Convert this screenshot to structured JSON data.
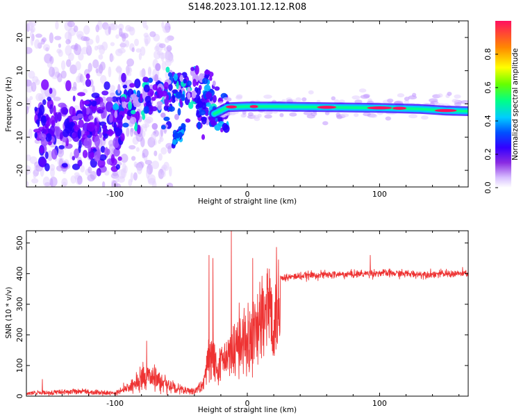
{
  "title": "S148.2023.101.12.12.R08",
  "chart_data": [
    {
      "type": "heatmap",
      "name": "spectrogram",
      "xlabel": "Height of straight line (km)",
      "ylabel": "Frequency (Hz)",
      "xlim": [
        -167,
        167
      ],
      "ylim": [
        -25,
        25
      ],
      "xticks": [
        -100,
        0,
        100
      ],
      "xtick_labels": [
        "-100",
        "0",
        "100"
      ],
      "yticks": [
        -20,
        -10,
        0,
        10,
        20
      ],
      "ytick_labels": [
        "-20",
        "-10",
        "0",
        "10",
        "20"
      ],
      "ridge": {
        "description_points_x": [
          -25,
          -20,
          -15,
          0,
          20,
          60,
          100,
          130,
          150,
          167
        ],
        "description_points_y": [
          -3,
          -2,
          -1,
          -0.8,
          -0.8,
          -1,
          -1.2,
          -1.5,
          -2,
          -2.2
        ]
      },
      "colorbar": {
        "label": "Normalized spectral amplitude",
        "range": [
          0,
          1
        ],
        "ticks": [
          0.0,
          0.2,
          0.4,
          0.6,
          0.8
        ],
        "tick_labels": [
          "0.0",
          "0.2",
          "0.4",
          "0.6",
          "0.8"
        ],
        "colors": [
          "#ffffff",
          "#c9a3ff",
          "#7a00ff",
          "#0000ff",
          "#00c8ff",
          "#00ff80",
          "#7fff00",
          "#ffff00",
          "#ff8000",
          "#ff1060"
        ]
      }
    },
    {
      "type": "line",
      "name": "snr",
      "xlabel": "Height of straight line (km)",
      "ylabel": "SNR (10 * v/v)",
      "xlim": [
        -167,
        167
      ],
      "ylim": [
        0,
        540
      ],
      "xticks": [
        -100,
        0,
        100
      ],
      "xtick_labels": [
        "-100",
        "0",
        "100"
      ],
      "yticks": [
        0,
        100,
        200,
        300,
        400,
        500
      ],
      "ytick_labels": [
        "0",
        "100",
        "200",
        "300",
        "400",
        "500"
      ],
      "color": "#ee3333",
      "envelope": {
        "x": [
          -167,
          -130,
          -100,
          -88,
          -80,
          -75,
          -70,
          -60,
          -50,
          -40,
          -33,
          -30,
          -26,
          -22,
          -18,
          -12,
          -5,
          0,
          5,
          10,
          15,
          20,
          25,
          35,
          50,
          80,
          100,
          130,
          167
        ],
        "y": [
          12,
          18,
          12,
          40,
          65,
          80,
          75,
          45,
          25,
          18,
          50,
          140,
          180,
          100,
          140,
          180,
          210,
          230,
          260,
          300,
          340,
          360,
          385,
          390,
          395,
          398,
          402,
          398,
          400
        ]
      },
      "spikes": [
        {
          "x": -29,
          "y": 460
        },
        {
          "x": -26,
          "y": 450
        },
        {
          "x": -12,
          "y": 540
        },
        {
          "x": 4,
          "y": 450
        },
        {
          "x": 93,
          "y": 460
        },
        {
          "x": -76,
          "y": 180
        },
        {
          "x": -155,
          "y": 55
        }
      ]
    }
  ]
}
